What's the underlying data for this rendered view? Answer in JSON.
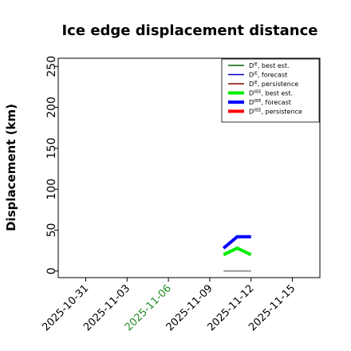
{
  "chart_data": {
    "type": "line",
    "title": "Ice edge displacement distance",
    "xlabel": "",
    "ylabel": "Displacement (km)",
    "ylim": [
      -8,
      260
    ],
    "xlim": [
      "2025-10-29",
      "2025-11-17"
    ],
    "yticks": [
      "0",
      "50",
      "100",
      "150",
      "200",
      "250"
    ],
    "xticks": [
      {
        "label": "2025-10-31",
        "color": "#000000"
      },
      {
        "label": "2025-11-03",
        "color": "#000000"
      },
      {
        "label": "2025-11-06",
        "color": "#228b22"
      },
      {
        "label": "2025-11-09",
        "color": "#000000"
      },
      {
        "label": "2025-11-12",
        "color": "#000000"
      },
      {
        "label": "2025-11-15",
        "color": "#000000"
      }
    ],
    "legend_position": "top-right",
    "series": [
      {
        "key": "de_best",
        "name": "D<sup>IE</sup>, best est.",
        "legend_base": "D",
        "legend_sup": "IE",
        "legend_rest": ", best est.",
        "color": "#006400",
        "width": 1.5,
        "x": [],
        "y": []
      },
      {
        "key": "de_forecast",
        "name": "D<sup>IE</sup>, forecast",
        "legend_base": "D",
        "legend_sup": "IE",
        "legend_rest": ", forecast",
        "color": "#0000cd",
        "width": 1.5,
        "x": [],
        "y": []
      },
      {
        "key": "de_persist",
        "name": "D<sup>IE</sup>, persistence",
        "legend_base": "D",
        "legend_sup": "IE",
        "legend_rest": ", persistence",
        "color": "#8b0000",
        "width": 1.5,
        "x": [],
        "y": []
      },
      {
        "key": "diiee_best",
        "name": "D<sup>IIEE</sup>, best est.",
        "legend_base": "D",
        "legend_sup": "IIEE",
        "legend_rest": ", best est.",
        "color": "#00ee00",
        "width": 4,
        "x": [
          "2025-11-10",
          "2025-11-11",
          "2025-11-12"
        ],
        "y": [
          20,
          28,
          20
        ]
      },
      {
        "key": "diiee_forecast",
        "name": "D<sup>IIEE</sup>, forecast",
        "legend_base": "D",
        "legend_sup": "IIEE",
        "legend_rest": ", forecast",
        "color": "#0000ff",
        "width": 4,
        "x": [
          "2025-11-10",
          "2025-11-11",
          "2025-11-12"
        ],
        "y": [
          28,
          42,
          42
        ]
      },
      {
        "key": "diiee_persist",
        "name": "D<sup>IIEE</sup>, persistence",
        "legend_base": "D",
        "legend_sup": "IIEE",
        "legend_rest": ", persistence",
        "color": "#ff0000",
        "width": 4,
        "x": [],
        "y": []
      },
      {
        "key": "grey_line",
        "name": "",
        "color": "#808080",
        "width": 1.5,
        "x": [
          "2025-11-10",
          "2025-11-12"
        ],
        "y": [
          0,
          0
        ]
      }
    ]
  }
}
